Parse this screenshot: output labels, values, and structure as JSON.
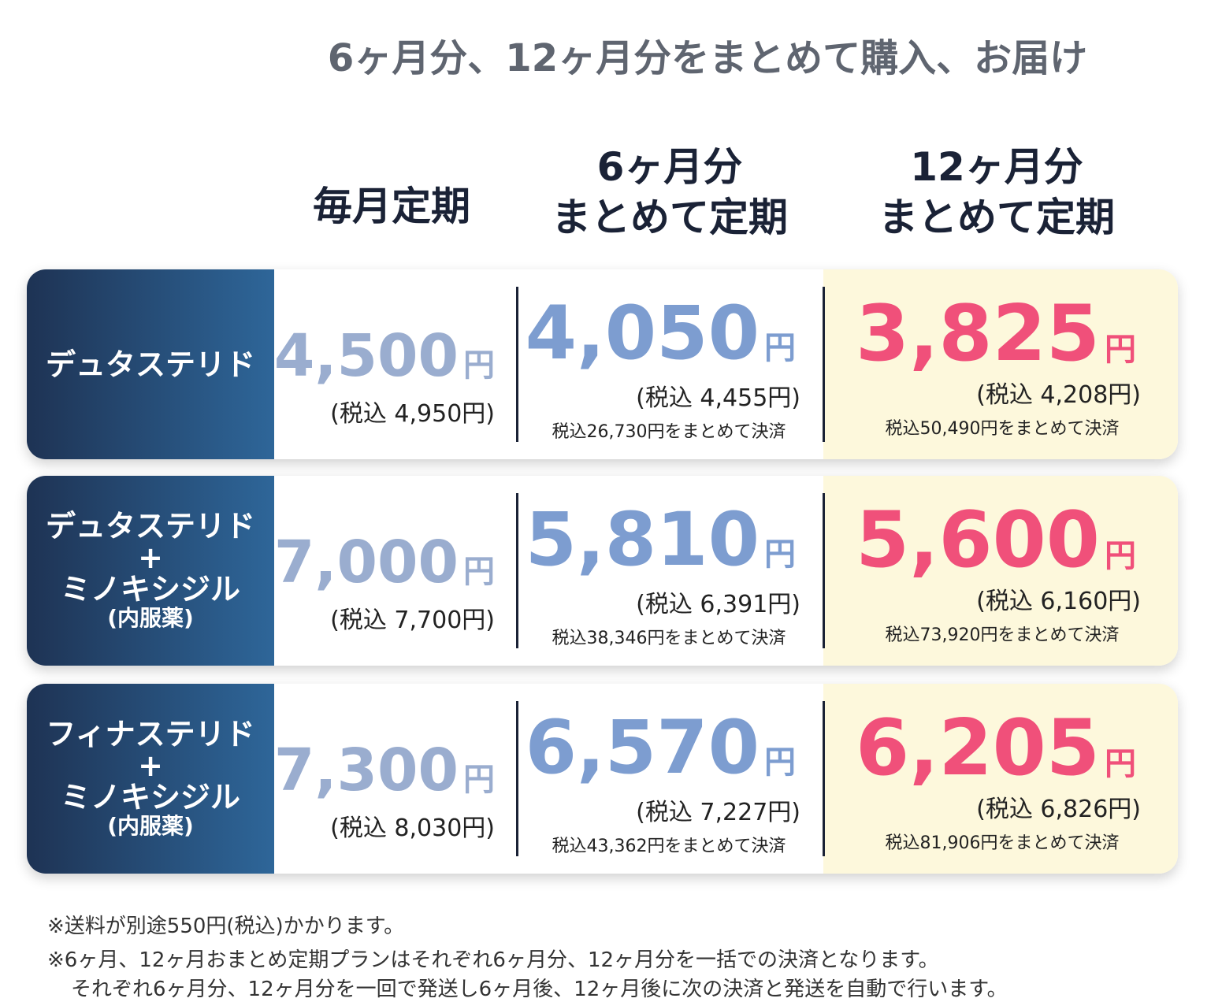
{
  "title": "6ヶ月分、12ヶ月分をまとめて購入、お届け",
  "columns": [
    [
      "毎月定期"
    ],
    [
      "6ヶ月分",
      "まとめて定期"
    ],
    [
      "12ヶ月分",
      "まとめて定期"
    ]
  ],
  "rows": [
    {
      "name": [
        "デュタステリド"
      ],
      "monthly": {
        "price": "4,500",
        "unit": "円",
        "tax": "(税込 4,950円)"
      },
      "six": {
        "price": "4,050",
        "unit": "円",
        "tax": "(税込 4,455円)",
        "total": "税込26,730円をまとめて決済"
      },
      "twelve": {
        "price": "3,825",
        "unit": "円",
        "tax": "(税込 4,208円)",
        "total": "税込50,490円をまとめて決済"
      }
    },
    {
      "name": [
        "デュタステリド",
        "+",
        "ミノキシジル",
        "(内服薬)"
      ],
      "monthly": {
        "price": "7,000",
        "unit": "円",
        "tax": "(税込 7,700円)"
      },
      "six": {
        "price": "5,810",
        "unit": "円",
        "tax": "(税込 6,391円)",
        "total": "税込38,346円をまとめて決済"
      },
      "twelve": {
        "price": "5,600",
        "unit": "円",
        "tax": "(税込 6,160円)",
        "total": "税込73,920円をまとめて決済"
      }
    },
    {
      "name": [
        "フィナステリド",
        "+",
        "ミノキシジル",
        "(内服薬)"
      ],
      "monthly": {
        "price": "7,300",
        "unit": "円",
        "tax": "(税込 8,030円)"
      },
      "six": {
        "price": "6,570",
        "unit": "円",
        "tax": "(税込 7,227円)",
        "total": "税込43,362円をまとめて決済"
      },
      "twelve": {
        "price": "6,205",
        "unit": "円",
        "tax": "(税込 6,826円)",
        "total": "税込81,906円をまとめて決済"
      }
    }
  ],
  "notes": [
    "※送料が別途550円(税込)かかります。",
    "※6ヶ月、12ヶ月おまとめ定期プランはそれぞれ6ヶ月分、12ヶ月分を一括での決済となります。",
    "それぞれ6ヶ月分、12ヶ月分を一回で発送し6ヶ月後、12ヶ月後に次の決済と発送を自動で行います。"
  ]
}
